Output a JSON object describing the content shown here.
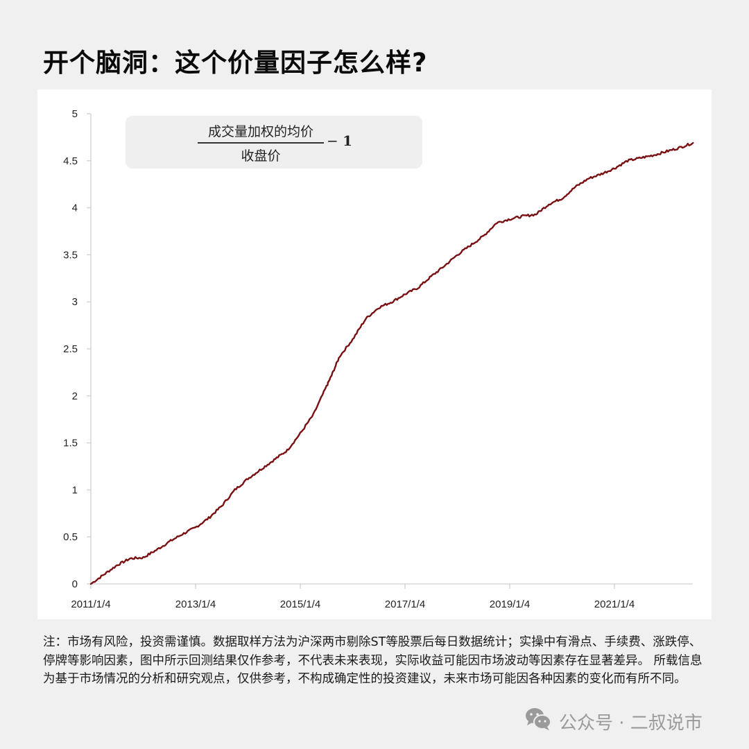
{
  "title": "开个脑洞：这个价量因子怎么样?",
  "formula": {
    "numerator": "成交量加权的均价",
    "denominator": "收盘价",
    "suffix_op": "−",
    "suffix_num": "1"
  },
  "note": "注：市场有风险，投资需谨慎。数据取样方法为沪深两市剔除ST等股票后每日数据统计；实操中有滑点、手续费、涨跌停、停牌等影响因素，图中所示回测结果仅作参考，不代表未来表现，实际收益可能因市场波动等因素存在显著差异。 所载信息为基于市场情况的分析和研究观点，仅供参考，不构成确定性的投资建议，未来市场可能因各种因素的变化而有所不同。",
  "watermark": {
    "icon": "wechat-icon",
    "text": "公众号 · 二叔说市"
  },
  "colors": {
    "line": "#7a0f12",
    "background": "#f0f0f0",
    "panel": "#ffffff",
    "axis": "#d0d0d0"
  },
  "chart_data": {
    "type": "line",
    "title": "",
    "xlabel": "",
    "ylabel": "",
    "ylim": [
      0,
      5
    ],
    "yticks": [
      "0",
      "0.5",
      "1",
      "1.5",
      "2",
      "2.5",
      "3",
      "3.5",
      "4",
      "4.5",
      "5"
    ],
    "xticks": [
      "2011/1/4",
      "2013/1/4",
      "2015/1/4",
      "2017/1/4",
      "2019/1/4",
      "2021/1/4"
    ],
    "grid": false,
    "legend": "none",
    "series": [
      {
        "name": "成交量加权的均价/收盘价 − 1",
        "x": [
          2011.0,
          2011.25,
          2011.5,
          2011.75,
          2012.0,
          2012.25,
          2012.5,
          2012.75,
          2013.0,
          2013.25,
          2013.5,
          2013.75,
          2014.0,
          2014.25,
          2014.5,
          2014.75,
          2015.0,
          2015.25,
          2015.5,
          2015.6,
          2015.75,
          2016.0,
          2016.25,
          2016.5,
          2016.75,
          2017.0,
          2017.25,
          2017.5,
          2017.75,
          2018.0,
          2018.25,
          2018.5,
          2018.75,
          2019.0,
          2019.25,
          2019.5,
          2019.75,
          2020.0,
          2020.25,
          2020.5,
          2020.75,
          2021.0,
          2021.25,
          2021.5,
          2021.75,
          2022.0,
          2022.25,
          2022.5
        ],
        "values": [
          0.0,
          0.1,
          0.2,
          0.27,
          0.28,
          0.36,
          0.45,
          0.53,
          0.6,
          0.7,
          0.83,
          1.0,
          1.12,
          1.22,
          1.32,
          1.42,
          1.6,
          1.8,
          2.1,
          2.22,
          2.42,
          2.6,
          2.82,
          2.94,
          3.0,
          3.08,
          3.15,
          3.27,
          3.38,
          3.5,
          3.6,
          3.7,
          3.84,
          3.88,
          3.91,
          3.93,
          4.04,
          4.1,
          4.22,
          4.31,
          4.36,
          4.42,
          4.5,
          4.53,
          4.56,
          4.6,
          4.64,
          4.69
        ]
      }
    ]
  }
}
